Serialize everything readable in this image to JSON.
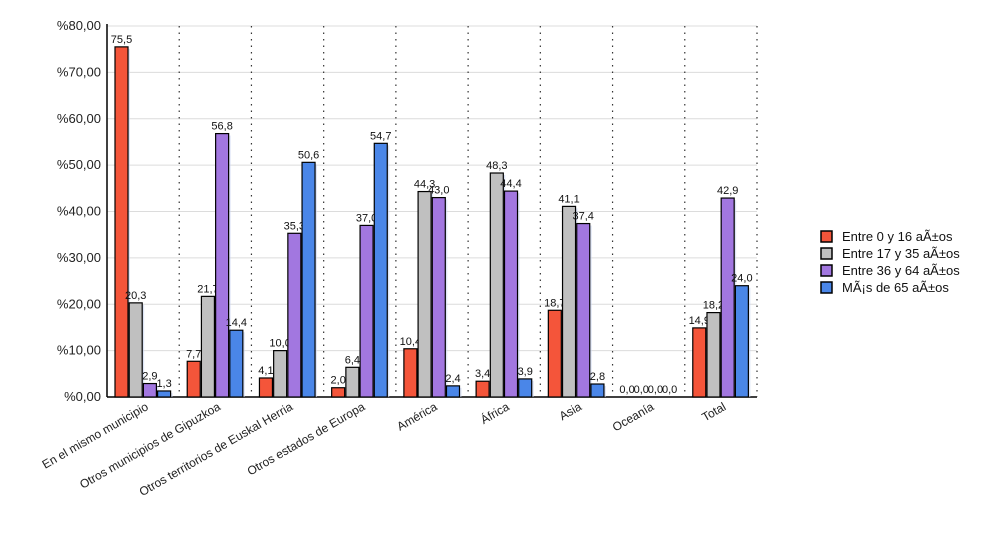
{
  "chart_data": {
    "type": "bar",
    "title": "",
    "xlabel": "",
    "ylabel": "",
    "ylim": [
      0,
      80
    ],
    "yticks": [
      "%0,00",
      "%10,00",
      "%20,00",
      "%30,00",
      "%40,00",
      "%50,00",
      "%60,00",
      "%70,00",
      "%80,00"
    ],
    "grid": true,
    "legend_position": "right",
    "categories": [
      "En el mismo municipio",
      "Otros municipios de Gipuzkoa",
      "Otros territorios de Euskal Herria",
      "Otros estados de Europa",
      "América",
      "África",
      "Asia",
      "Oceanía",
      "Total"
    ],
    "series": [
      {
        "name": "Entre 0 y 16 aÃ±os",
        "color": "#f4553a",
        "values": [
          75.5,
          7.7,
          4.1,
          2.0,
          10.4,
          3.4,
          18.7,
          0.0,
          14.9
        ],
        "labels": [
          "75,5",
          "7,7",
          "4,1",
          "2,0",
          "10,4",
          "3,4",
          "18,7",
          "0,0",
          "14,9"
        ]
      },
      {
        "name": "Entre 17 y 35 aÃ±os",
        "color": "#c0c0c0",
        "values": [
          20.3,
          21.7,
          10.0,
          6.4,
          44.3,
          48.3,
          41.1,
          0.0,
          18.2
        ],
        "labels": [
          "20,3",
          "21,7",
          "10,0",
          "6,4",
          "44,3",
          "48,3",
          "41,1",
          "0,0",
          "18,2"
        ]
      },
      {
        "name": "Entre 36 y 64 aÃ±os",
        "color": "#a277e0",
        "values": [
          2.9,
          56.8,
          35.3,
          37.0,
          43.0,
          44.4,
          37.4,
          0.0,
          42.9
        ],
        "labels": [
          "2,9",
          "56,8",
          "35,3",
          "37,0",
          "43,0",
          "44,4",
          "37,4",
          "0,0",
          "42,9"
        ]
      },
      {
        "name": "MÃ¡s de 65 aÃ±os",
        "color": "#4a86e8",
        "values": [
          1.3,
          14.4,
          50.6,
          54.7,
          2.4,
          3.9,
          2.8,
          0.0,
          24.0
        ],
        "labels": [
          "1,3",
          "14,4",
          "50,6",
          "54,7",
          "2,4",
          "3,9",
          "2,8",
          "0,0",
          "24,0"
        ]
      }
    ]
  }
}
